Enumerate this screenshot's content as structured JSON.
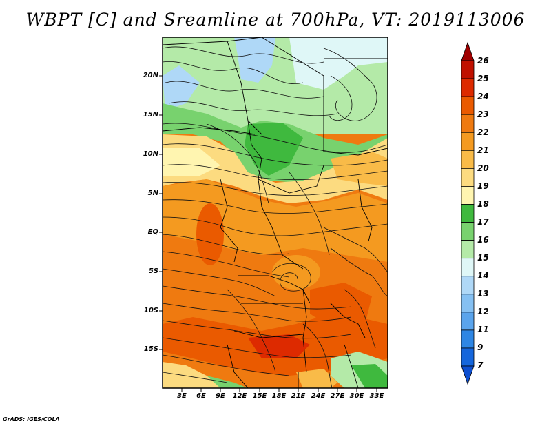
{
  "title": "WBPT [C] and Sreamline at 700hPa, VT: 2019113006",
  "credit": "GrADS: IGES/COLA",
  "map": {
    "lat_labels": [
      "20N",
      "15N",
      "10N",
      "5N",
      "EQ",
      "5S",
      "10S",
      "15S"
    ],
    "lon_labels": [
      "3E",
      "6E",
      "9E",
      "12E",
      "15E",
      "18E",
      "21E",
      "24E",
      "27E",
      "30E",
      "33E"
    ],
    "variable": "Wet-bulb potential temperature",
    "level": "700hPa"
  },
  "colorbar": {
    "levels": [
      "26",
      "25",
      "24",
      "23",
      "22",
      "21",
      "20",
      "19",
      "18",
      "17",
      "16",
      "15",
      "14",
      "13",
      "12",
      "11",
      "9",
      "7"
    ],
    "colors": [
      "#a00000",
      "#c01000",
      "#dd2a00",
      "#ea5a00",
      "#ef7a10",
      "#f49a20",
      "#f9bb48",
      "#fcdb80",
      "#fff5b0",
      "#3fb93e",
      "#78d26e",
      "#b4eaa8",
      "#dff7f7",
      "#afd8f7",
      "#85c0f2",
      "#5aa4ec",
      "#2e86e4",
      "#1566dc",
      "#0d4fd0"
    ]
  }
}
